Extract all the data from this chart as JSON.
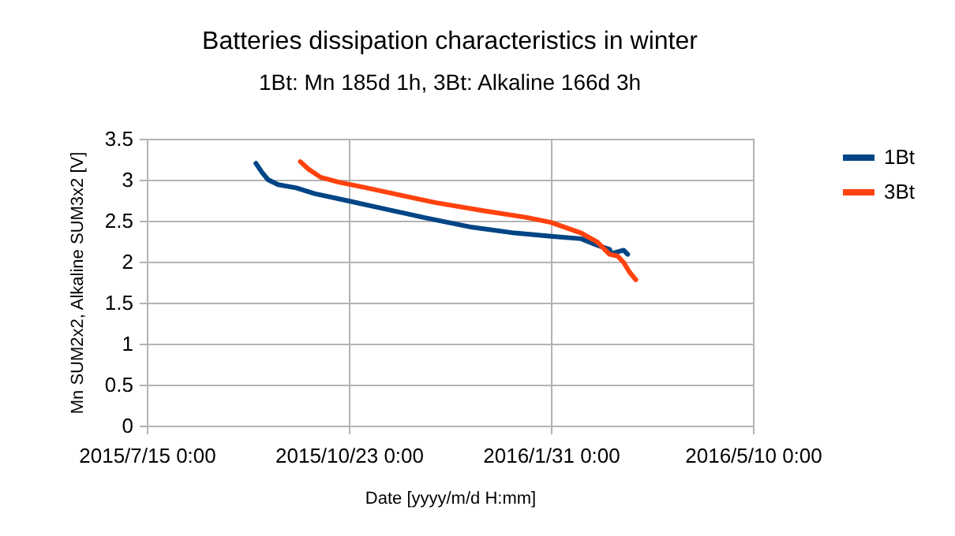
{
  "chart_data": {
    "type": "line",
    "title": "Batteries dissipation characteristics in winter",
    "subtitle": "1Bt: Mn 185d 1h, 3Bt: Alkaline 166d 3h",
    "xlabel": "Date [yyyy/m/d H:mm]",
    "ylabel": "Mn SUM2x2, Alkaline SUM3x2 [V]",
    "series": [
      {
        "name": "1Bt",
        "color": "#004586",
        "x": [
          "2015-09-07",
          "2015-09-10",
          "2015-09-13",
          "2015-09-18",
          "2015-09-27",
          "2015-10-06",
          "2015-10-23",
          "2015-11-05",
          "2015-11-29",
          "2015-12-23",
          "2016-01-13",
          "2016-01-31",
          "2016-02-15",
          "2016-02-23",
          "2016-02-29",
          "2016-03-01",
          "2016-03-07",
          "2016-03-09"
        ],
        "values": [
          3.2,
          3.09,
          3.0,
          2.94,
          2.9,
          2.83,
          2.74,
          2.67,
          2.54,
          2.42,
          2.35,
          2.31,
          2.28,
          2.2,
          2.15,
          2.1,
          2.14,
          2.09
        ]
      },
      {
        "name": "3Bt",
        "color": "#ff420e",
        "x": [
          "2015-09-29",
          "2015-10-03",
          "2015-10-09",
          "2015-10-18",
          "2015-10-30",
          "2015-11-14",
          "2015-12-05",
          "2015-12-29",
          "2016-01-19",
          "2016-01-31",
          "2016-02-15",
          "2016-02-23",
          "2016-02-29",
          "2016-03-04",
          "2016-03-07",
          "2016-03-10",
          "2016-03-13"
        ],
        "values": [
          3.22,
          3.13,
          3.03,
          2.97,
          2.91,
          2.83,
          2.72,
          2.62,
          2.54,
          2.48,
          2.35,
          2.24,
          2.09,
          2.07,
          1.99,
          1.87,
          1.78
        ]
      }
    ],
    "xlim": [
      "2015-07-15",
      "2016-05-10"
    ],
    "xticks": [
      {
        "value": "2015-07-15",
        "label": "2015/7/15 0:00"
      },
      {
        "value": "2015-10-23",
        "label": "2015/10/23 0:00"
      },
      {
        "value": "2016-01-31",
        "label": "2016/1/31 0:00"
      },
      {
        "value": "2016-05-10",
        "label": "2016/5/10 0:00"
      }
    ],
    "ylim": [
      0,
      3.5
    ],
    "yticks": [
      0,
      0.5,
      1,
      1.5,
      2,
      2.5,
      3,
      3.5
    ],
    "grid": true,
    "legend": "right",
    "marker": "none",
    "line_style": "solid"
  }
}
